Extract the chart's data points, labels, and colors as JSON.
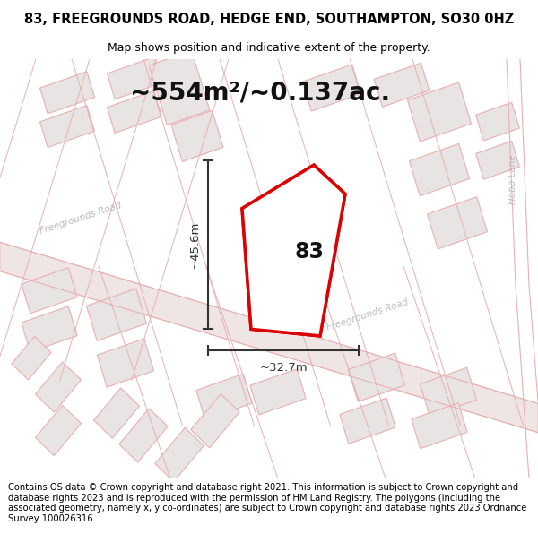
{
  "title": "83, FREEGROUNDS ROAD, HEDGE END, SOUTHAMPTON, SO30 0HZ",
  "subtitle": "Map shows position and indicative extent of the property.",
  "area_label": "~554m²/~0.137ac.",
  "width_label": "~32.7m",
  "height_label": "~45.6m",
  "number_label": "83",
  "footer": "Contains OS data © Crown copyright and database right 2021. This information is subject to Crown copyright and database rights 2023 and is reproduced with the permission of HM Land Registry. The polygons (including the associated geometry, namely x, y co-ordinates) are subject to Crown copyright and database rights 2023 Ordnance Survey 100026316.",
  "map_bg": "#f5eeee",
  "building_fill": "#e8e4e4",
  "building_edge": "#e8b0b0",
  "road_line": "#e8b0b0",
  "highlight_fill": "#ffffff",
  "highlight_edge": "#dd0000",
  "measure_color": "#333333",
  "road_label_color": "#bbbbbb",
  "title_fontsize": 10.5,
  "subtitle_fontsize": 9,
  "area_fontsize": 20,
  "footer_fontsize": 7.2
}
